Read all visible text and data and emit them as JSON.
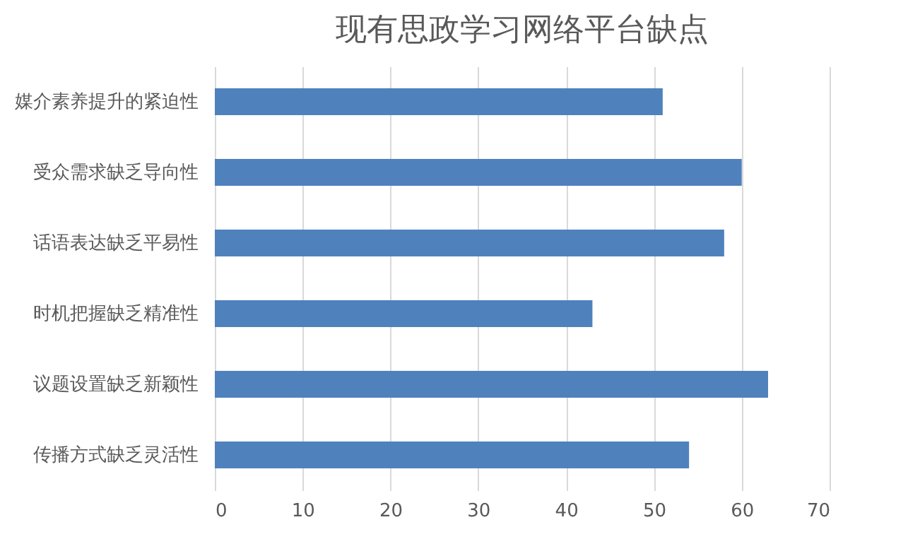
{
  "chart_data": {
    "type": "bar",
    "orientation": "horizontal",
    "title": "现有思政学习网络平台缺点",
    "categories": [
      "媒介素养提升的紧迫性",
      "受众需求缺乏导向性",
      "话语表达缺乏平易性",
      "时机把握缺乏精准性",
      "议题设置缺乏新颖性",
      "传播方式缺乏灵活性"
    ],
    "values": [
      51,
      60,
      58,
      43,
      63,
      54
    ],
    "color": "#4f81bd",
    "xlim": [
      0,
      70
    ],
    "xticks": [
      0,
      10,
      20,
      30,
      40,
      50,
      60,
      70
    ],
    "grid": "x"
  }
}
